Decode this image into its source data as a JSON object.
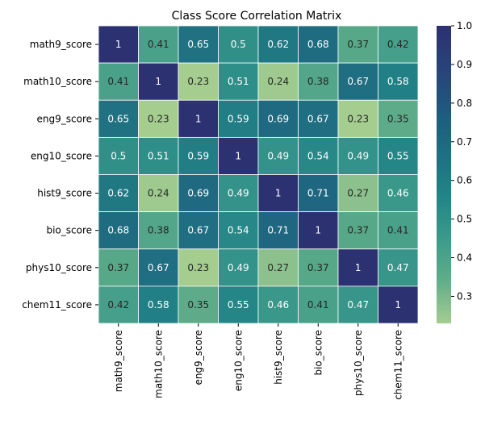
{
  "chart_data": {
    "type": "heatmap",
    "title": "Class Score Correlation Matrix",
    "row_labels": [
      "math9_score",
      "math10_score",
      "eng9_score",
      "eng10_score",
      "hist9_score",
      "bio_score",
      "phys10_score",
      "chem11_score"
    ],
    "col_labels": [
      "math9_score",
      "math10_score",
      "eng9_score",
      "eng10_score",
      "hist9_score",
      "bio_score",
      "phys10_score",
      "chem11_score"
    ],
    "values": [
      [
        1,
        0.41,
        0.65,
        0.5,
        0.62,
        0.68,
        0.37,
        0.42
      ],
      [
        0.41,
        1,
        0.23,
        0.51,
        0.24,
        0.38,
        0.67,
        0.58
      ],
      [
        0.65,
        0.23,
        1,
        0.59,
        0.69,
        0.67,
        0.23,
        0.35
      ],
      [
        0.5,
        0.51,
        0.59,
        1,
        0.49,
        0.54,
        0.49,
        0.55
      ],
      [
        0.62,
        0.24,
        0.69,
        0.49,
        1,
        0.71,
        0.27,
        0.46
      ],
      [
        0.68,
        0.38,
        0.67,
        0.54,
        0.71,
        1,
        0.37,
        0.41
      ],
      [
        0.37,
        0.67,
        0.23,
        0.49,
        0.27,
        0.37,
        1,
        0.47
      ],
      [
        0.42,
        0.58,
        0.35,
        0.55,
        0.46,
        0.41,
        0.47,
        1
      ]
    ],
    "colorbar": {
      "range": [
        0.23,
        1.0
      ],
      "ticks": [
        0.3,
        0.4,
        0.5,
        0.6,
        0.7,
        0.8,
        0.9,
        1.0
      ],
      "tick_labels": [
        "0.3",
        "0.4",
        "0.5",
        "0.6",
        "0.7",
        "0.8",
        "0.9",
        "1.0"
      ]
    },
    "colormap": "crest",
    "colormap_stops": [
      "#a5cd90",
      "#60ad89",
      "#3c9a8a",
      "#228486",
      "#1f6e81",
      "#1e5a7e",
      "#284379",
      "#2c3172"
    ]
  }
}
